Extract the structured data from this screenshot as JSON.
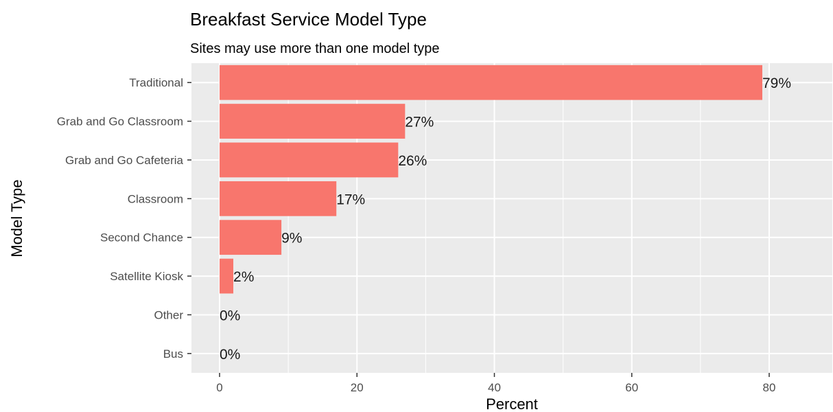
{
  "chart_data": {
    "type": "bar",
    "orientation": "horizontal",
    "title": "Breakfast Service Model Type",
    "subtitle": "Sites may use more than one model type",
    "xlabel": "Percent",
    "ylabel": "Model Type",
    "categories": [
      "Traditional",
      "Grab and Go Classroom",
      "Grab and Go Cafeteria",
      "Classroom",
      "Second Chance",
      "Satellite Kiosk",
      "Other",
      "Bus"
    ],
    "values": [
      79,
      27,
      26,
      17,
      9,
      2,
      0,
      0
    ],
    "data_labels": [
      "79%",
      "27%",
      "26%",
      "17%",
      "9%",
      "2%",
      "0%",
      "0%"
    ],
    "xlim": [
      0,
      87
    ],
    "xticks": [
      0,
      20,
      40,
      60,
      80
    ],
    "grid": true,
    "colors": {
      "bar": "#F8766D",
      "panel": "#EBEBEB",
      "grid": "#FFFFFF"
    }
  }
}
